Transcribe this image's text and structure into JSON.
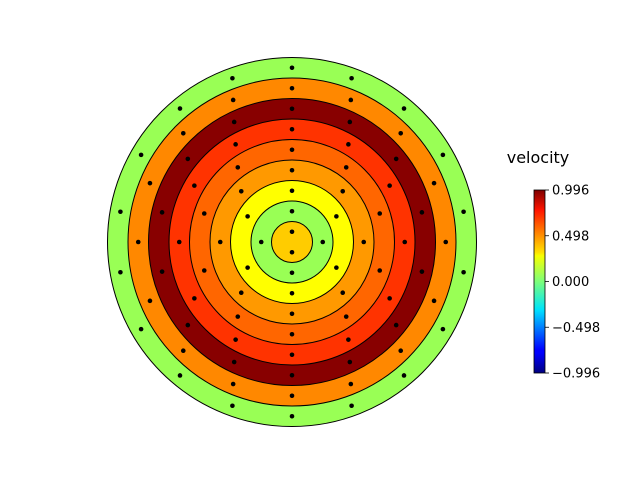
{
  "chart_data": {
    "type": "heatmap",
    "layout": "polar-rings",
    "colorbar": {
      "label": "velocity",
      "min": -0.996,
      "max": 0.996,
      "colormap": "jet",
      "ticks": [
        0.996,
        0.498,
        0.0,
        -0.498,
        -0.996
      ],
      "tick_labels": [
        "0.996",
        "0.498",
        "0.000",
        "−0.498",
        "−0.996"
      ],
      "placement": "right"
    },
    "rings": [
      {
        "ring": 1,
        "value": 0.62,
        "color": "#ffcc00",
        "points": 2
      },
      {
        "ring": 2,
        "value": 0.3,
        "color": "#99ff55",
        "points": 4
      },
      {
        "ring": 3,
        "value": 0.48,
        "color": "#ffff00",
        "points": 6
      },
      {
        "ring": 4,
        "value": 0.72,
        "color": "#ff9900",
        "points": 8
      },
      {
        "ring": 5,
        "value": 0.8,
        "color": "#ff6600",
        "points": 10
      },
      {
        "ring": 6,
        "value": 0.88,
        "color": "#ff3300",
        "points": 12
      },
      {
        "ring": 7,
        "value": 0.98,
        "color": "#880000",
        "points": 14
      },
      {
        "ring": 8,
        "value": 0.74,
        "color": "#ff8800",
        "points": 16
      },
      {
        "ring": 9,
        "value": 0.3,
        "color": "#99ff55",
        "points": 18
      }
    ]
  }
}
